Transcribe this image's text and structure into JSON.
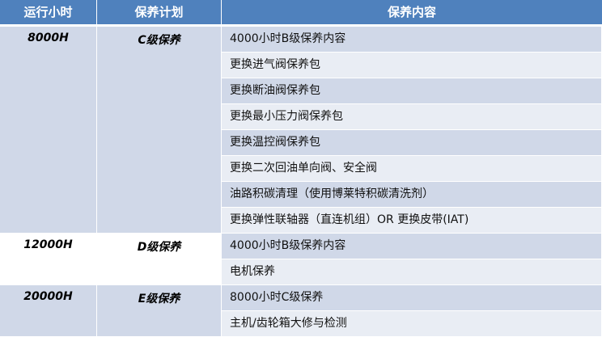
{
  "headers": [
    "运行小时",
    "保养计划",
    "保养内容"
  ],
  "groups": [
    {
      "hours": "8000H",
      "plan": "C级保养",
      "items": [
        "4000小时B级保养内容",
        "更换进气阀保养包",
        "更换断油阀保养包",
        "更换最小压力阀保养包",
        "更换温控阀保养包",
        "更换二次回油单向阀、安全阀",
        "油路积碳清理（使用博莱特积碳清洗剂）",
        "更换弹性联轴器（直连机组）OR 更换皮带(IAT)"
      ]
    },
    {
      "hours": "12000H",
      "plan": "D级保养",
      "items": [
        "4000小时B级保养内容",
        "电机保养"
      ]
    },
    {
      "hours": "20000H",
      "plan": "E级保养",
      "items": [
        "8000小时C级保养",
        "主机/齿轮箱大修与检测"
      ]
    }
  ],
  "colors": {
    "header": "#4F81BD",
    "row_dark": "#D0D8E8",
    "row_light": "#E9EDF4"
  }
}
